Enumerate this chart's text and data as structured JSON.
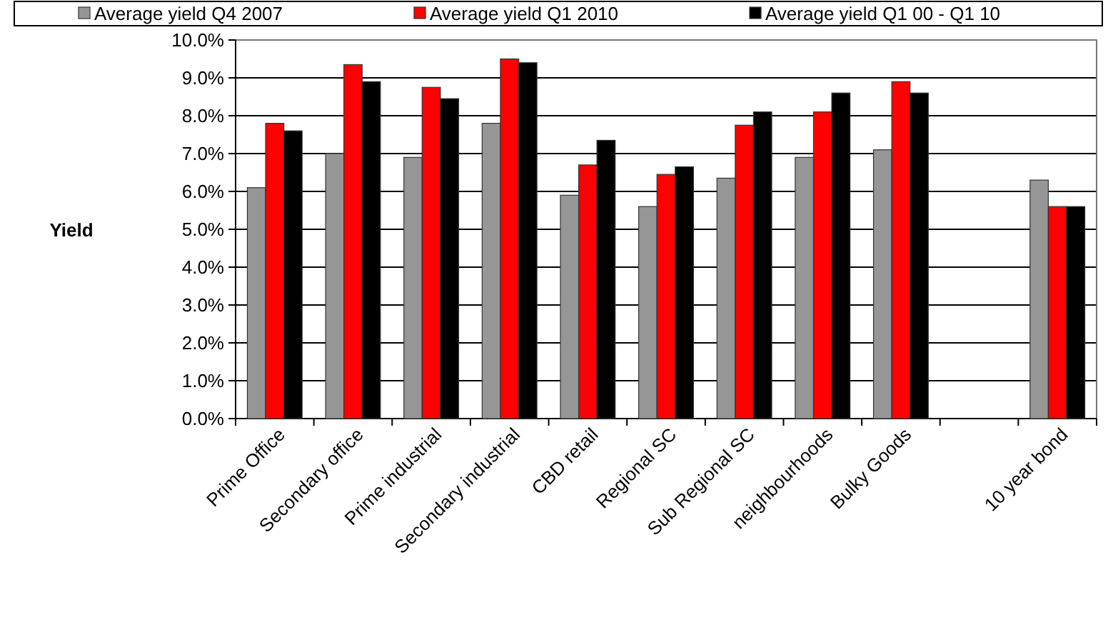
{
  "chart_data": {
    "type": "bar",
    "ylabel": "Yield",
    "categories": [
      "Prime Office",
      "Secondary office",
      "Prime industrial",
      "Secondary industrial",
      "CBD retail",
      "Regional SC",
      "Sub Regional SC",
      "neighbourhoods",
      "Bulky Goods",
      null,
      "10 year bond"
    ],
    "series": [
      {
        "name": "Average yield Q4 2007",
        "color": "#969696",
        "values": [
          6.1,
          7.0,
          6.9,
          7.8,
          5.9,
          5.6,
          6.35,
          6.9,
          7.1,
          null,
          6.3
        ]
      },
      {
        "name": "Average yield Q1 2010",
        "color": "#ff0000",
        "values": [
          7.8,
          9.35,
          8.75,
          9.5,
          6.7,
          6.45,
          7.75,
          8.1,
          8.9,
          null,
          5.6
        ]
      },
      {
        "name": "Average yield Q1 00 - Q1 10",
        "color": "#000000",
        "values": [
          7.6,
          8.9,
          8.45,
          9.4,
          7.35,
          6.65,
          8.1,
          8.6,
          8.6,
          null,
          5.6
        ]
      }
    ],
    "ylim": [
      0,
      10
    ],
    "yticks": [
      {
        "value": 0,
        "label": "0.0%"
      },
      {
        "value": 1,
        "label": "1.0%"
      },
      {
        "value": 2,
        "label": "2.0%"
      },
      {
        "value": 3,
        "label": "3.0%"
      },
      {
        "value": 4,
        "label": "4.0%"
      },
      {
        "value": 5,
        "label": "5.0%"
      },
      {
        "value": 6,
        "label": "6.0%"
      },
      {
        "value": 7,
        "label": "7.0%"
      },
      {
        "value": 8,
        "label": "8.0%"
      },
      {
        "value": 9,
        "label": "9.0%"
      },
      {
        "value": 10,
        "label": "10.0%"
      }
    ],
    "grid": "y",
    "legend": "top"
  }
}
